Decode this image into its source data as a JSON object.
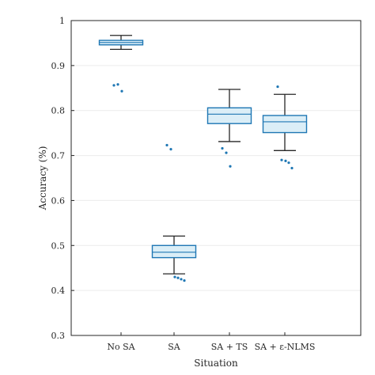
{
  "chart_data": {
    "type": "box",
    "xlabel": "Situation",
    "ylabel": "Accuracy (%)",
    "ylim": [
      0.3,
      1.0
    ],
    "yticks": [
      "0.3",
      "0.4",
      "0.5",
      "0.6",
      "0.7",
      "0.8",
      "0.9",
      "1"
    ],
    "grid": "horizontal",
    "categories": [
      "No SA",
      "SA",
      "SA + TS",
      "SA + ε-NLMS"
    ],
    "boxes": [
      {
        "name": "No SA",
        "whisker_low": 0.936,
        "q1": 0.946,
        "median": 0.951,
        "q3": 0.956,
        "whisker_high": 0.967,
        "outliers": [
          0.856,
          0.858,
          0.843
        ]
      },
      {
        "name": "SA",
        "whisker_low": 0.437,
        "q1": 0.473,
        "median": 0.485,
        "q3": 0.5,
        "whisker_high": 0.521,
        "outliers": [
          0.723,
          0.714,
          0.43,
          0.428,
          0.425,
          0.422
        ]
      },
      {
        "name": "SA + TS",
        "whisker_low": 0.731,
        "q1": 0.771,
        "median": 0.792,
        "q3": 0.806,
        "whisker_high": 0.847,
        "outliers": [
          0.716,
          0.706,
          0.676
        ]
      },
      {
        "name": "SA + ε-NLMS",
        "whisker_low": 0.711,
        "q1": 0.751,
        "median": 0.775,
        "q3": 0.789,
        "whisker_high": 0.836,
        "outliers": [
          0.853,
          0.69,
          0.688,
          0.684,
          0.672
        ]
      }
    ]
  }
}
